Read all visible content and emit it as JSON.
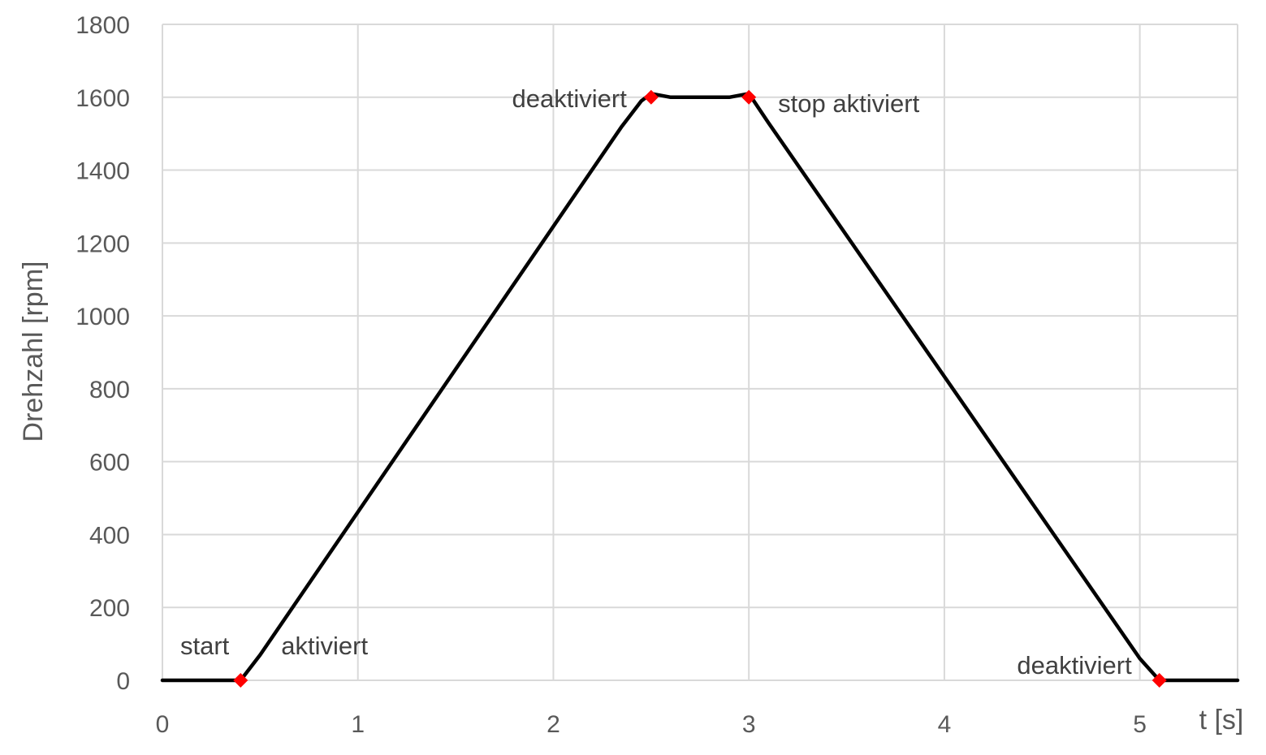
{
  "chart_data": {
    "type": "line",
    "title": "",
    "xlabel": "t [s]",
    "ylabel": "Drehzahl [rpm]",
    "xlim": [
      0,
      5.5
    ],
    "ylim": [
      0,
      1800
    ],
    "x_ticks": [
      0,
      1,
      2,
      3,
      4,
      5
    ],
    "y_ticks": [
      0,
      200,
      400,
      600,
      800,
      1000,
      1200,
      1400,
      1600,
      1800
    ],
    "grid": true,
    "legend": "none",
    "series": [
      {
        "color": "#000000",
        "points": [
          [
            0,
            0
          ],
          [
            0.3,
            0
          ],
          [
            0.4,
            0
          ],
          [
            0.5,
            70
          ],
          [
            2.35,
            1520
          ],
          [
            2.45,
            1590
          ],
          [
            2.5,
            1610
          ],
          [
            2.6,
            1600
          ],
          [
            2.9,
            1600
          ],
          [
            3.0,
            1610
          ],
          [
            3.1,
            1530
          ],
          [
            5.0,
            60
          ],
          [
            5.1,
            0
          ],
          [
            5.2,
            0
          ],
          [
            5.5,
            0
          ]
        ]
      }
    ],
    "markers": {
      "color": "#ff0000",
      "shape": "diamond",
      "points": [
        [
          0.4,
          0
        ],
        [
          2.5,
          1600
        ],
        [
          3.0,
          1600
        ],
        [
          5.1,
          0
        ]
      ]
    },
    "annotations": [
      {
        "text": "start",
        "x": 0.4,
        "y": 0,
        "placement": "upper-left"
      },
      {
        "text": "aktiviert",
        "x": 0.4,
        "y": 0,
        "placement": "upper-right"
      },
      {
        "text": "deaktiviert",
        "x": 2.5,
        "y": 1600,
        "placement": "left"
      },
      {
        "text": "stop aktiviert",
        "x": 3.0,
        "y": 1600,
        "placement": "right"
      },
      {
        "text": "deaktiviert",
        "x": 5.1,
        "y": 0,
        "placement": "upper-left"
      }
    ]
  }
}
